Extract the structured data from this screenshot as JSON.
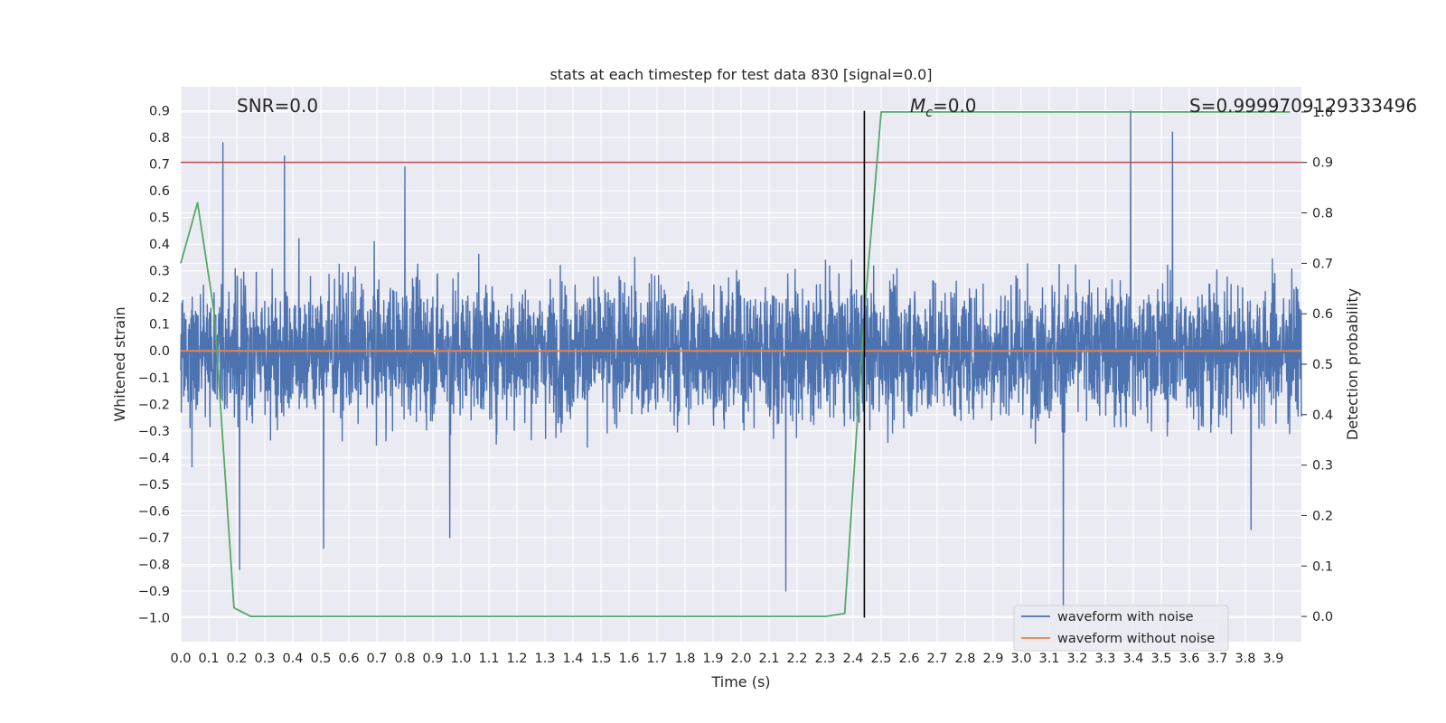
{
  "chart_data": {
    "type": "line",
    "title": "stats at each timestep for test data 830 [signal=0.0]",
    "xlabel": "Time (s)",
    "ylabel": "Whitened strain",
    "y2label": "Detection probability",
    "xlim": [
      0.0,
      4.0
    ],
    "ylim": [
      -1.09,
      0.99
    ],
    "y2lim": [
      -0.05,
      1.05
    ],
    "xticks": [
      "0.0",
      "0.1",
      "0.2",
      "0.3",
      "0.4",
      "0.5",
      "0.6",
      "0.7",
      "0.8",
      "0.9",
      "1.0",
      "1.1",
      "1.2",
      "1.3",
      "1.4",
      "1.5",
      "1.6",
      "1.7",
      "1.8",
      "1.9",
      "2.0",
      "2.1",
      "2.2",
      "2.3",
      "2.4",
      "2.5",
      "2.6",
      "2.7",
      "2.8",
      "2.9",
      "3.0",
      "3.1",
      "3.2",
      "3.3",
      "3.4",
      "3.5",
      "3.6",
      "3.7",
      "3.8",
      "3.9"
    ],
    "yticks": [
      "0.9",
      "0.8",
      "0.7",
      "0.6",
      "0.5",
      "0.4",
      "0.3",
      "0.2",
      "0.1",
      "0.0",
      "−0.1",
      "−0.2",
      "−0.3",
      "−0.4",
      "−0.5",
      "−0.6",
      "−0.7",
      "−0.8",
      "−0.9",
      "−1.0"
    ],
    "y2ticks": [
      "1.0",
      "0.9",
      "0.8",
      "0.7",
      "0.6",
      "0.5",
      "0.4",
      "0.3",
      "0.2",
      "0.1",
      "0.0"
    ],
    "grid": true,
    "legend_position": "lower-right",
    "annotations": {
      "snr": "SNR=0.0",
      "mc_symbol": "M",
      "mc_sub": "c",
      "mc_value": "=0.0",
      "score": "S=0.9999709129333496"
    },
    "threshold_line": {
      "axis": "right",
      "value": 0.9,
      "color": "#c44e52"
    },
    "marker_line": {
      "x": 2.44,
      "y_from": -1.0,
      "y_to": 0.9,
      "color": "#000000"
    },
    "series": [
      {
        "name": "waveform with noise",
        "axis": "left",
        "color": "#4c72b0",
        "kind": "noise",
        "approx_std": 0.18,
        "approx_range": [
          -0.97,
          0.9
        ],
        "peaks": [
          {
            "x": 0.15,
            "y": 0.78
          },
          {
            "x": 0.37,
            "y": 0.73
          },
          {
            "x": 0.8,
            "y": 0.69
          },
          {
            "x": 3.39,
            "y": 0.9
          },
          {
            "x": 3.54,
            "y": 0.82
          },
          {
            "x": 0.21,
            "y": -0.82
          },
          {
            "x": 0.51,
            "y": -0.74
          },
          {
            "x": 0.96,
            "y": -0.7
          },
          {
            "x": 2.16,
            "y": -0.9
          },
          {
            "x": 3.15,
            "y": -0.97
          },
          {
            "x": 3.82,
            "y": -0.67
          }
        ]
      },
      {
        "name": "waveform without noise",
        "axis": "left",
        "color": "#dd8452",
        "x": [
          0.0,
          4.0
        ],
        "y": [
          0.0,
          0.0
        ]
      },
      {
        "axis": "right",
        "color": "#55a868",
        "x": [
          0.0,
          0.06,
          0.12,
          0.19,
          0.25,
          0.5,
          1.0,
          1.5,
          2.0,
          2.3,
          2.37,
          2.44,
          2.5,
          3.0,
          3.5,
          3.96
        ],
        "y": [
          0.7,
          0.82,
          0.6,
          0.017,
          0.0,
          0.0,
          0.0,
          0.0,
          0.0,
          0.0,
          0.006,
          0.6,
          1.0,
          1.0,
          1.0,
          1.0
        ]
      }
    ]
  },
  "legend": {
    "with_noise_label": "waveform with noise",
    "without_noise_label": "waveform without noise"
  }
}
